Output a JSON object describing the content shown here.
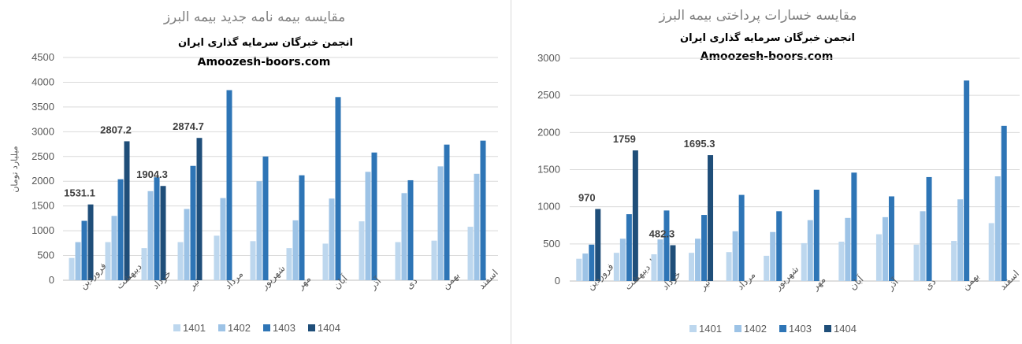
{
  "chart_data": [
    {
      "type": "bar",
      "title": "مقایسه بیمه نامه جدید بیمه البرز",
      "subtitle": "انجمن خبرگان سرمایه گذاری ایران",
      "watermark": "Amoozesh-boors.com",
      "ylabel": "میلیارد تومان",
      "xlabel": "",
      "ylim": [
        0,
        4500
      ],
      "yticks": [
        0,
        500,
        1000,
        1500,
        2000,
        2500,
        3000,
        3500,
        4000,
        4500
      ],
      "grid": true,
      "legend_position": "bottom",
      "categories": [
        "فروردین",
        "اردیبهشت",
        "خرداد",
        "تیر",
        "مرداد",
        "شهریور",
        "مهر",
        "آبان",
        "آذر",
        "دی",
        "بهمن",
        "اسفند"
      ],
      "series": [
        {
          "name": "1401",
          "color": "#bdd7ee",
          "values": [
            450,
            770,
            650,
            770,
            900,
            790,
            650,
            740,
            1190,
            770,
            800,
            1080
          ]
        },
        {
          "name": "1402",
          "color": "#9dc3e6",
          "values": [
            770,
            1300,
            1800,
            1440,
            1660,
            2000,
            1210,
            1650,
            2190,
            1760,
            2300,
            2150
          ]
        },
        {
          "name": "1403",
          "color": "#2e75b6",
          "values": [
            1200,
            2040,
            2080,
            2310,
            3840,
            2500,
            2120,
            3700,
            2580,
            2020,
            2740,
            2820
          ]
        },
        {
          "name": "1404",
          "color": "#1f4e79",
          "values": [
            1531.1,
            2807.2,
            1904.3,
            2874.7,
            null,
            null,
            null,
            null,
            null,
            null,
            null,
            null
          ]
        }
      ],
      "data_labels": [
        {
          "series": "1404",
          "category": "فروردین",
          "text": "1531.1"
        },
        {
          "series": "1404",
          "category": "اردیبهشت",
          "text": "2807.2"
        },
        {
          "series": "1404",
          "category": "خرداد",
          "text": "1904.3"
        },
        {
          "series": "1404",
          "category": "تیر",
          "text": "2874.7"
        }
      ]
    },
    {
      "type": "bar",
      "title": "مقایسه خسارات پرداختی بیمه البرز",
      "subtitle": "انجمن خبرگان سرمایه گذاری ایران",
      "watermark": "Amoozesh-boors.com",
      "ylabel": "",
      "xlabel": "",
      "ylim": [
        0,
        3000
      ],
      "yticks": [
        0,
        500,
        1000,
        1500,
        2000,
        2500,
        3000
      ],
      "grid": true,
      "legend_position": "bottom",
      "categories": [
        "فروردین",
        "اردیبهشت",
        "خرداد",
        "تیر",
        "مرداد",
        "شهریور",
        "مهر",
        "آبان",
        "آذر",
        "دی",
        "بهمن",
        "اسفند"
      ],
      "series": [
        {
          "name": "1401",
          "color": "#bdd7ee",
          "values": [
            300,
            380,
            360,
            380,
            390,
            340,
            510,
            530,
            630,
            490,
            540,
            780
          ]
        },
        {
          "name": "1402",
          "color": "#9dc3e6",
          "values": [
            370,
            570,
            560,
            570,
            670,
            660,
            820,
            850,
            860,
            940,
            1100,
            1410
          ]
        },
        {
          "name": "1403",
          "color": "#2e75b6",
          "values": [
            490,
            900,
            950,
            890,
            1160,
            940,
            1230,
            1460,
            1140,
            1400,
            2700,
            2090
          ]
        },
        {
          "name": "1404",
          "color": "#1f4e79",
          "values": [
            970,
            1759,
            482.3,
            1695.3,
            null,
            null,
            null,
            null,
            null,
            null,
            null,
            null
          ]
        }
      ],
      "data_labels": [
        {
          "series": "1404",
          "category": "فروردین",
          "text": "970"
        },
        {
          "series": "1404",
          "category": "اردیبهشت",
          "text": "1759"
        },
        {
          "series": "1404",
          "category": "خرداد",
          "text": "482.3"
        },
        {
          "series": "1404",
          "category": "تیر",
          "text": "1695.3"
        }
      ]
    }
  ]
}
